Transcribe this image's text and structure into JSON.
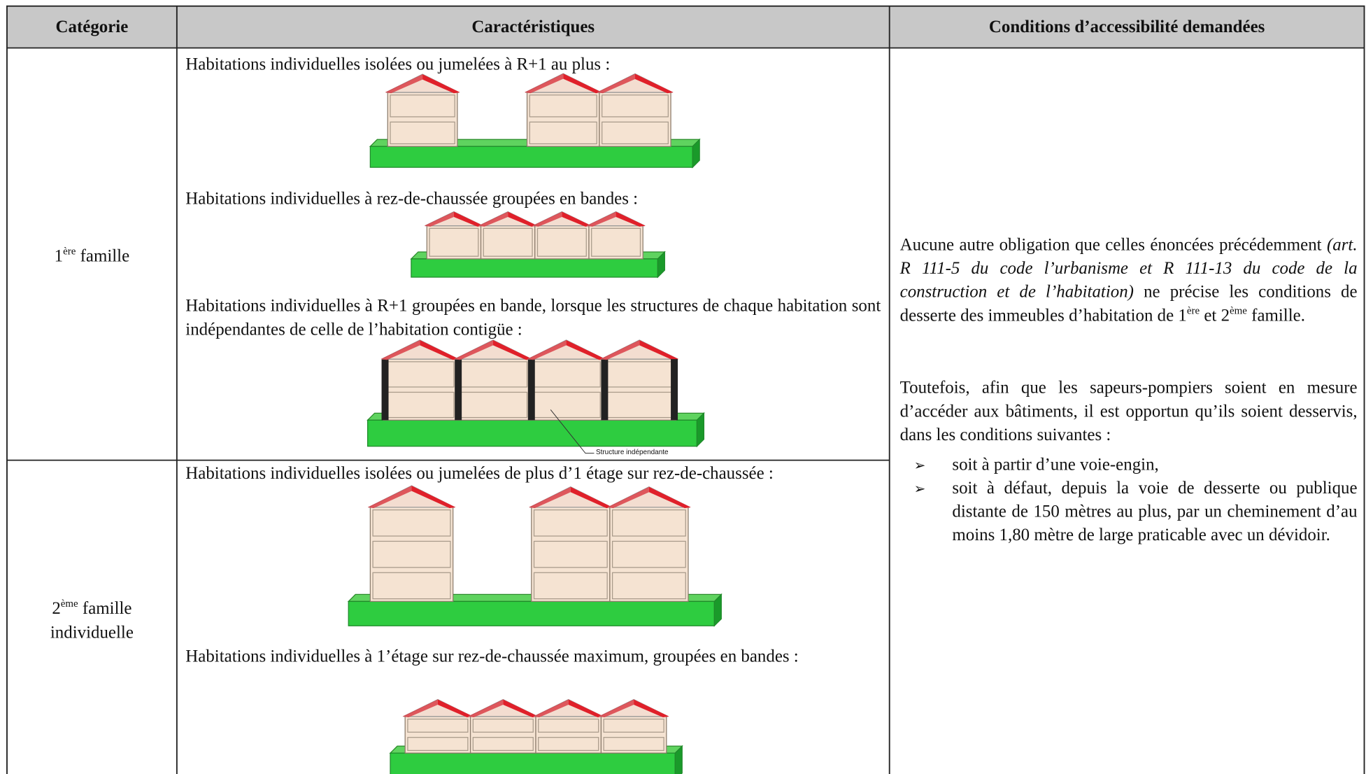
{
  "table": {
    "headers": [
      "Catégorie",
      "Caractéristiques",
      "Conditions d’accessibilité demandées"
    ],
    "rows": [
      {
        "category": {
          "number": "1",
          "suffix": "ère",
          "label": "famille"
        },
        "items": [
          "Habitations individuelles isolées ou jumelées à R+1 au plus :",
          "Habitations individuelles à rez-de-chaussée groupées en bandes :",
          "Habitations individuelles à R+1 groupées en bande, lorsque les structures de chaque habitation sont indépendantes de celle de l’habitation contigüe :"
        ],
        "figure_label": "Structure indépendante"
      },
      {
        "category": {
          "number": "2",
          "suffix": "ème",
          "label": "famille",
          "label2": "individuelle"
        },
        "items": [
          "Habitations individuelles isolées ou jumelées de plus d’1 étage sur rez-de-chaussée :",
          "Habitations individuelles à 1’étage sur rez-de-chaussée maximum, groupées en bandes :"
        ]
      }
    ],
    "conditions": {
      "paragraph1": {
        "text": "Aucune autre obligation que celles énoncées précédemment",
        "reference": "(art. R 111-5 du code l’urbanisme et R 111-13 du code de la construction et de l’habitation)",
        "text2": "ne précise les conditions de desserte des immeubles d’habitation de",
        "first": "1",
        "first_suffix": "ère",
        "conjunction": "et",
        "second": "2",
        "second_suffix": "ème",
        "end": "famille."
      },
      "paragraph2": "Toutefois, afin que les sapeurs-pompiers soient en mesure d’accéder aux bâtiments, il est opportun qu’ils soient desservis, dans les conditions suivantes :",
      "bullets": [
        "soit à partir d’une voie-engin,",
        "soit à défaut, depuis la voie de desserte ou publique distante de 150 mètres au plus, par un cheminement d’au moins 1,80 mètre de large praticable avec un dévidoir."
      ]
    }
  }
}
